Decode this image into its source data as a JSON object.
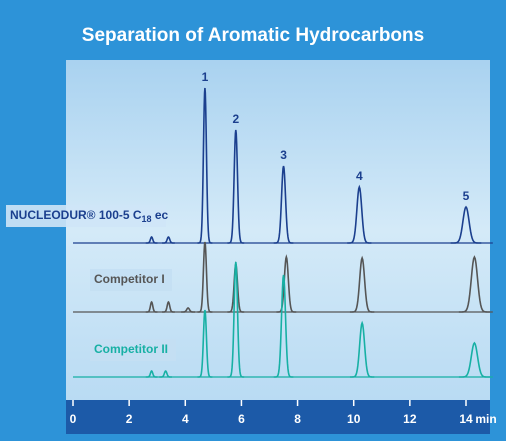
{
  "chart_data": {
    "type": "chromatogram",
    "title": "Separation of Aromatic Hydrocarbons",
    "x_label": "min",
    "xlim": [
      0,
      14.6
    ],
    "xticks": [
      0,
      2,
      4,
      6,
      8,
      10,
      12,
      14
    ],
    "series": [
      {
        "label": [
          "NUCLEODUR® 100-5 C",
          "18",
          " ec"
        ],
        "color": "#1b3f8e",
        "times": [
          2.8,
          3.4,
          4.7,
          5.8,
          7.5,
          10.2,
          14.0
        ],
        "heights": [
          6,
          6,
          155,
          113,
          77,
          56,
          36
        ],
        "peak_labels": [
          null,
          null,
          "1",
          "2",
          "3",
          "4",
          "5"
        ]
      },
      {
        "label": [
          "Competitor I"
        ],
        "color": "#555555",
        "times": [
          2.8,
          3.4,
          4.1,
          4.7,
          5.8,
          7.6,
          10.3,
          14.3
        ],
        "heights": [
          10,
          10,
          4,
          70,
          48,
          55,
          54,
          55
        ]
      },
      {
        "label": [
          "Competitor II"
        ],
        "color": "#17b0a4",
        "times": [
          2.8,
          3.3,
          4.7,
          5.8,
          7.5,
          10.3,
          14.3
        ],
        "heights": [
          6,
          6,
          67,
          115,
          102,
          54,
          34
        ]
      }
    ]
  }
}
